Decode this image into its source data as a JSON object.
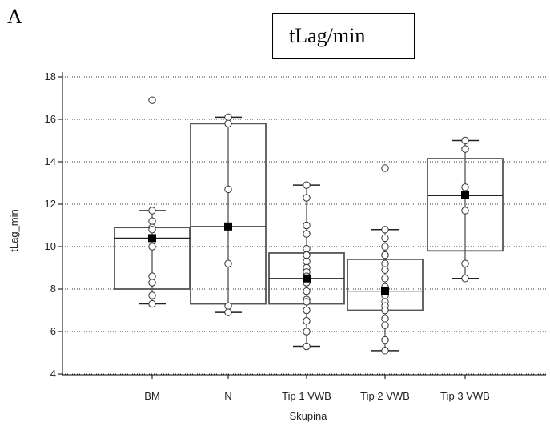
{
  "panel_letter": "A",
  "title_box": "tLag/min",
  "chart_data": {
    "type": "box",
    "title": "tLag/min",
    "xlabel": "Skupina",
    "ylabel": "tLag_min",
    "ylim": [
      4,
      18
    ],
    "yticks": [
      4,
      6,
      8,
      10,
      12,
      14,
      16,
      18
    ],
    "grid": "horizontal-dotted",
    "categories": [
      "BM",
      "N",
      "Tip 1 VWB",
      "Tip 2 VWB",
      "Tip 3 VWB"
    ],
    "groups": [
      {
        "name": "BM",
        "q1": 8.0,
        "median": 10.4,
        "q3": 10.9,
        "mean": 10.4,
        "whisker_low": 7.3,
        "whisker_high": 11.7,
        "points": [
          16.9,
          11.7,
          11.2,
          10.9,
          10.8,
          10.4,
          10.0,
          8.6,
          8.3,
          7.7,
          7.3
        ]
      },
      {
        "name": "N",
        "q1": 7.3,
        "median": 10.95,
        "q3": 15.8,
        "mean": 10.95,
        "whisker_low": 6.9,
        "whisker_high": 16.1,
        "points": [
          16.1,
          15.8,
          12.7,
          9.2,
          7.2,
          6.9
        ]
      },
      {
        "name": "Tip 1 VWB",
        "q1": 7.3,
        "median": 8.5,
        "q3": 9.7,
        "mean": 8.5,
        "whisker_low": 5.3,
        "whisker_high": 12.9,
        "points": [
          12.9,
          12.3,
          11.0,
          10.6,
          9.9,
          9.6,
          9.3,
          9.0,
          8.8,
          8.6,
          8.3,
          7.9,
          7.5,
          7.4,
          7.0,
          6.5,
          6.0,
          5.3
        ]
      },
      {
        "name": "Tip 2 VWB",
        "q1": 7.0,
        "median": 7.9,
        "q3": 9.4,
        "mean": 7.9,
        "whisker_low": 5.1,
        "whisker_high": 10.8,
        "points": [
          13.7,
          10.8,
          10.4,
          10.0,
          9.6,
          9.6,
          9.2,
          8.9,
          8.5,
          8.1,
          7.7,
          7.4,
          7.2,
          7.0,
          6.6,
          6.3,
          5.6,
          5.1
        ]
      },
      {
        "name": "Tip 3 VWB",
        "q1": 9.8,
        "median": 12.4,
        "q3": 14.15,
        "mean": 12.45,
        "whisker_low": 8.5,
        "whisker_high": 15.0,
        "points": [
          15.0,
          14.6,
          12.8,
          11.7,
          9.2,
          8.5
        ]
      }
    ]
  }
}
